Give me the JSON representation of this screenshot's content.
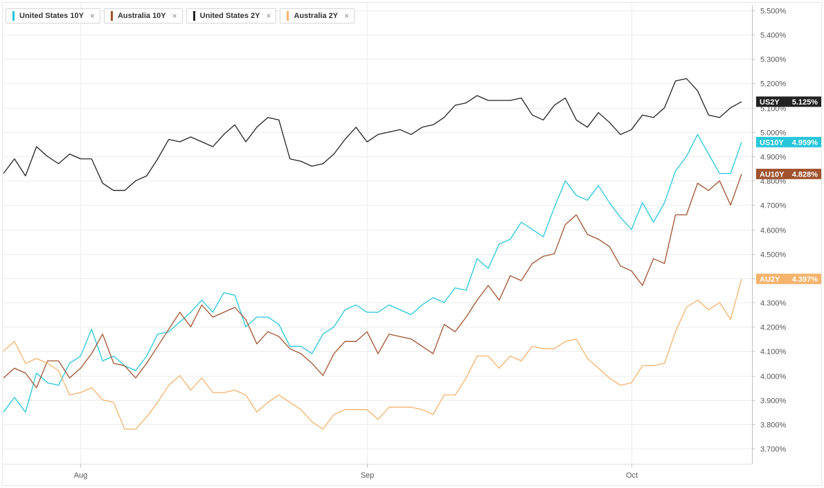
{
  "legend": [
    {
      "label": "United States 10Y",
      "color": "#26c6da"
    },
    {
      "label": "Australia 10Y",
      "color": "#a0522d"
    },
    {
      "label": "United States 2Y",
      "color": "#222222"
    },
    {
      "label": "Australia 2Y",
      "color": "#f4b26b"
    }
  ],
  "legend_close_glyph": "×",
  "chart_data": {
    "type": "line",
    "ylim": [
      3.65,
      5.53
    ],
    "yticks": [
      "5.500%",
      "5.400%",
      "5.300%",
      "5.200%",
      "5.100%",
      "5.000%",
      "4.900%",
      "4.800%",
      "4.700%",
      "4.600%",
      "4.500%",
      "4.400%",
      "4.300%",
      "4.200%",
      "4.100%",
      "4.000%",
      "3.900%",
      "3.800%",
      "3.700%"
    ],
    "ytick_values": [
      5.5,
      5.4,
      5.3,
      5.2,
      5.1,
      5.0,
      4.9,
      4.8,
      4.7,
      4.6,
      4.5,
      4.4,
      4.3,
      4.2,
      4.1,
      4.0,
      3.9,
      3.8,
      3.7
    ],
    "xlim": [
      0,
      77
    ],
    "xticks": [
      {
        "label": "Aug",
        "x": 7
      },
      {
        "label": "Sep",
        "x": 33
      },
      {
        "label": "Oct",
        "x": 57
      }
    ],
    "series": [
      {
        "name": "United States 2Y",
        "color": "#222222",
        "badge": {
          "label": "US2Y",
          "value": "5.125%",
          "y": 5.125
        },
        "values": [
          4.83,
          4.89,
          4.82,
          4.94,
          4.9,
          4.87,
          4.91,
          4.89,
          4.89,
          4.79,
          4.76,
          4.76,
          4.8,
          4.82,
          4.89,
          4.97,
          4.96,
          4.98,
          4.96,
          4.94,
          4.99,
          5.03,
          4.96,
          5.02,
          5.06,
          5.05,
          4.89,
          4.88,
          4.86,
          4.87,
          4.91,
          4.97,
          5.02,
          4.96,
          4.99,
          5.0,
          5.01,
          4.99,
          5.02,
          5.03,
          5.06,
          5.11,
          5.12,
          5.15,
          5.13,
          5.13,
          5.13,
          5.14,
          5.07,
          5.05,
          5.11,
          5.14,
          5.05,
          5.02,
          5.08,
          5.04,
          4.99,
          5.01,
          5.07,
          5.06,
          5.1,
          5.21,
          5.22,
          5.17,
          5.07,
          5.06,
          5.1,
          5.125
        ]
      },
      {
        "name": "United States 10Y",
        "color": "#26c6da",
        "badge": {
          "label": "US10Y",
          "value": "4.959%",
          "y": 4.959
        },
        "values": [
          3.85,
          3.91,
          3.85,
          4.01,
          3.97,
          3.96,
          4.05,
          4.08,
          4.19,
          4.06,
          4.08,
          4.04,
          4.02,
          4.08,
          4.17,
          4.18,
          4.22,
          4.26,
          4.31,
          4.26,
          4.34,
          4.33,
          4.2,
          4.24,
          4.24,
          4.21,
          4.12,
          4.12,
          4.09,
          4.17,
          4.2,
          4.27,
          4.29,
          4.26,
          4.26,
          4.29,
          4.27,
          4.25,
          4.29,
          4.32,
          4.3,
          4.36,
          4.35,
          4.48,
          4.44,
          4.54,
          4.56,
          4.63,
          4.6,
          4.57,
          4.69,
          4.8,
          4.74,
          4.72,
          4.78,
          4.71,
          4.65,
          4.6,
          4.71,
          4.63,
          4.71,
          4.84,
          4.9,
          4.99,
          4.91,
          4.83,
          4.83,
          4.959
        ]
      },
      {
        "name": "Australia 10Y",
        "color": "#a0522d",
        "badge": {
          "label": "AU10Y",
          "value": "4.828%",
          "y": 4.828
        },
        "values": [
          3.99,
          4.03,
          4.01,
          3.95,
          4.06,
          4.06,
          3.99,
          4.03,
          4.09,
          4.17,
          4.05,
          4.04,
          3.99,
          4.05,
          4.12,
          4.19,
          4.26,
          4.2,
          4.29,
          4.24,
          4.26,
          4.28,
          4.23,
          4.13,
          4.18,
          4.16,
          4.11,
          4.09,
          4.05,
          4.0,
          4.09,
          4.14,
          4.14,
          4.18,
          4.09,
          4.17,
          4.16,
          4.15,
          4.12,
          4.09,
          4.21,
          4.18,
          4.24,
          4.31,
          4.37,
          4.31,
          4.41,
          4.39,
          4.46,
          4.49,
          4.5,
          4.62,
          4.66,
          4.58,
          4.56,
          4.53,
          4.45,
          4.43,
          4.37,
          4.48,
          4.46,
          4.66,
          4.66,
          4.79,
          4.76,
          4.8,
          4.7,
          4.828
        ]
      },
      {
        "name": "Australia 2Y",
        "color": "#f4b26b",
        "badge": {
          "label": "AU2Y",
          "value": "4.397%",
          "y": 4.397
        },
        "values": [
          4.1,
          4.14,
          4.05,
          4.07,
          4.05,
          4.02,
          3.92,
          3.93,
          3.95,
          3.9,
          3.89,
          3.78,
          3.78,
          3.83,
          3.89,
          3.96,
          4.0,
          3.94,
          3.99,
          3.93,
          3.93,
          3.94,
          3.92,
          3.85,
          3.89,
          3.92,
          3.89,
          3.86,
          3.81,
          3.78,
          3.84,
          3.86,
          3.86,
          3.86,
          3.82,
          3.87,
          3.87,
          3.87,
          3.86,
          3.84,
          3.92,
          3.92,
          3.99,
          4.08,
          4.08,
          4.03,
          4.08,
          4.06,
          4.12,
          4.11,
          4.11,
          4.14,
          4.15,
          4.07,
          4.03,
          3.99,
          3.96,
          3.97,
          4.04,
          4.04,
          4.05,
          4.18,
          4.28,
          4.31,
          4.27,
          4.3,
          4.23,
          4.397
        ]
      }
    ]
  }
}
